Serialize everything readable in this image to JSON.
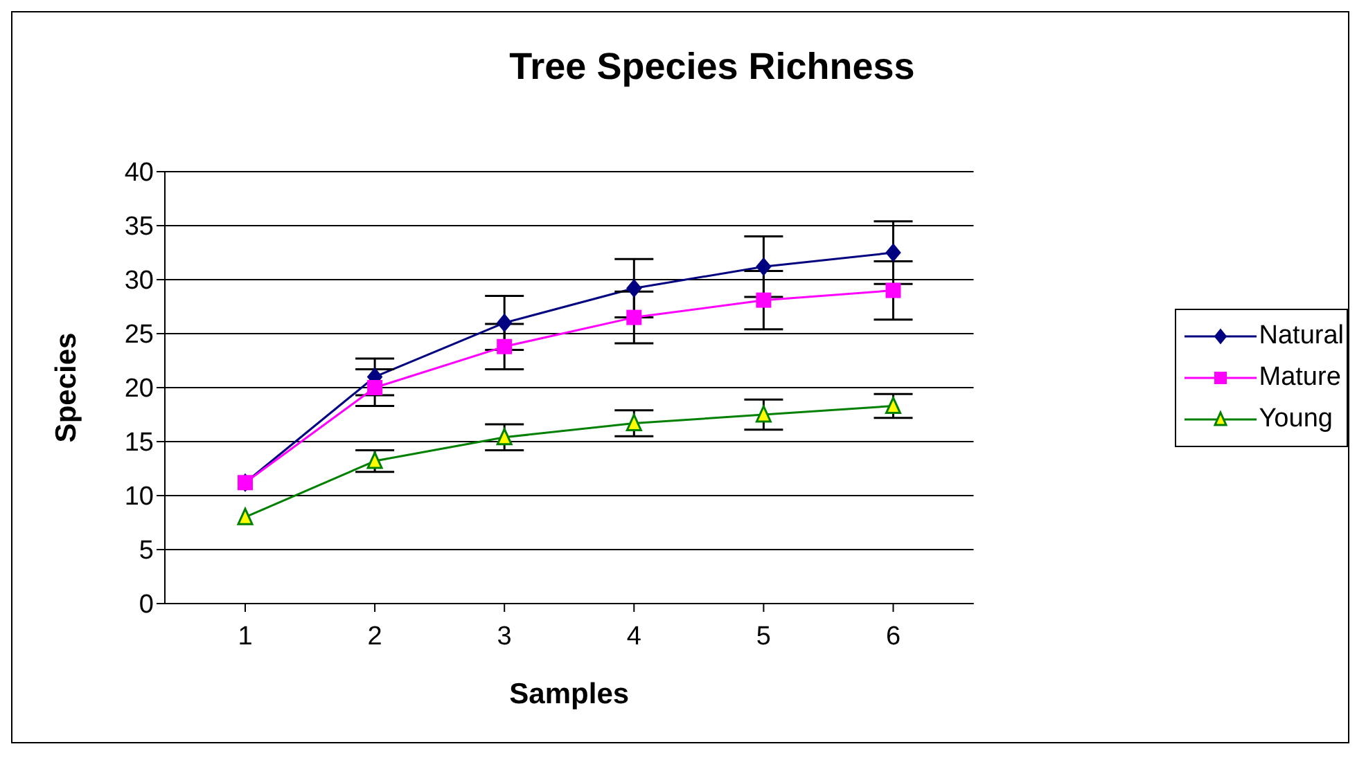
{
  "chart_data": {
    "type": "line",
    "title": "Tree Species Richness",
    "xlabel": "Samples",
    "ylabel": "Species",
    "categories": [
      "1",
      "2",
      "3",
      "4",
      "5",
      "6"
    ],
    "series": [
      {
        "name": "Natural",
        "color": "#000080",
        "marker": "diamond",
        "values": [
          11.2,
          21,
          26,
          29.2,
          31.2,
          32.5
        ],
        "errors": [
          null,
          1.7,
          2.5,
          2.7,
          2.8,
          2.9
        ]
      },
      {
        "name": "Mature",
        "color": "#ff00ff",
        "marker": "square",
        "values": [
          11.2,
          20,
          23.8,
          26.5,
          28.1,
          29
        ],
        "errors": [
          null,
          1.7,
          2.1,
          2.4,
          2.7,
          2.7
        ]
      },
      {
        "name": "Young",
        "color": "#008000",
        "marker": "triangle",
        "values": [
          8,
          13.2,
          15.4,
          16.7,
          17.5,
          18.3
        ],
        "errors": [
          null,
          1.0,
          1.2,
          1.2,
          1.4,
          1.1
        ]
      }
    ],
    "ylim": [
      0,
      40
    ],
    "yticks": [
      0,
      5,
      10,
      15,
      20,
      25,
      30,
      35,
      40
    ],
    "grid": "y",
    "legend": "right",
    "line_style": "solid"
  }
}
